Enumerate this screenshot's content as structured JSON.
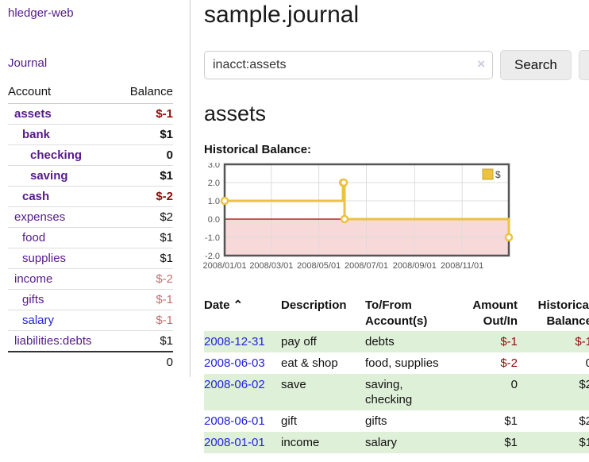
{
  "app": {
    "title": "hledger-web"
  },
  "sidebar": {
    "journal_label": "Journal",
    "accounts": {
      "account_header": "Account",
      "balance_header": "Balance",
      "rows": [
        {
          "account": "assets",
          "balance": "$-1",
          "level": 1,
          "in_view": true,
          "neg": "strong",
          "unvisited": false
        },
        {
          "account": "bank",
          "balance": "$1",
          "level": 2,
          "in_view": true,
          "neg": "none",
          "unvisited": false
        },
        {
          "account": "checking",
          "balance": "0",
          "level": 3,
          "in_view": true,
          "neg": "none",
          "unvisited": false
        },
        {
          "account": "saving",
          "balance": "$1",
          "level": 3,
          "in_view": true,
          "neg": "none",
          "unvisited": false
        },
        {
          "account": "cash",
          "balance": "$-2",
          "level": 2,
          "in_view": true,
          "neg": "strong",
          "unvisited": false
        },
        {
          "account": "expenses",
          "balance": "$2",
          "level": 1,
          "in_view": false,
          "neg": "none",
          "unvisited": false
        },
        {
          "account": "food",
          "balance": "$1",
          "level": 2,
          "in_view": false,
          "neg": "none",
          "unvisited": false
        },
        {
          "account": "supplies",
          "balance": "$1",
          "level": 2,
          "in_view": false,
          "neg": "none",
          "unvisited": false
        },
        {
          "account": "income",
          "balance": "$-2",
          "level": 1,
          "in_view": false,
          "neg": "muted",
          "unvisited": false
        },
        {
          "account": "gifts",
          "balance": "$-1",
          "level": 2,
          "in_view": false,
          "neg": "muted",
          "unvisited": false
        },
        {
          "account": "salary",
          "balance": "$-1",
          "level": 2,
          "in_view": false,
          "neg": "muted",
          "unvisited": true
        },
        {
          "account": "liabilities:debts",
          "balance": "$1",
          "level": 1,
          "in_view": false,
          "neg": "none",
          "unvisited": false
        }
      ],
      "total": "0"
    }
  },
  "main": {
    "title": "sample.journal",
    "search": {
      "value": "inacct:assets",
      "clear_glyph": "×",
      "button_label": "Search",
      "help_label": "?"
    },
    "account_heading": "assets",
    "chart_label": "Historical Balance:"
  },
  "chart_data": {
    "type": "line",
    "title": "Historical Balance",
    "step": true,
    "markers": "open-circle",
    "series": [
      {
        "name": "$",
        "color": "#EDC240",
        "points": [
          {
            "date": "2008/01/01",
            "day": 0,
            "value": 1
          },
          {
            "date": "2008/06/01",
            "day": 152,
            "value": 2
          },
          {
            "date": "2008/06/02",
            "day": 153,
            "value": 2
          },
          {
            "date": "2008/06/03",
            "day": 154,
            "value": 0
          },
          {
            "date": "2008/12/31",
            "day": 365,
            "value": -1
          }
        ]
      }
    ],
    "x_range_days": [
      0,
      365
    ],
    "x_ticks": [
      {
        "day": 0,
        "label": "2008/01/01"
      },
      {
        "day": 60,
        "label": "2008/03/01"
      },
      {
        "day": 121,
        "label": "2008/05/01"
      },
      {
        "day": 182,
        "label": "2008/07/01"
      },
      {
        "day": 244,
        "label": "2008/09/01"
      },
      {
        "day": 305,
        "label": "2008/11/01"
      }
    ],
    "ylim": [
      -2,
      3
    ],
    "y_ticks": [
      3.0,
      2.0,
      1.0,
      0.0,
      -1.0,
      -2.0
    ],
    "grid": true,
    "legend": {
      "position": "top-right",
      "label": "$"
    },
    "negative_region_color": "#f8d9d9",
    "zero_line_color": "#a40000"
  },
  "register": {
    "sort_glyph": "⌃",
    "headers": [
      {
        "id": "date",
        "lines": [
          "Date"
        ],
        "align": "left",
        "icon": "caret-up-icon"
      },
      {
        "id": "description",
        "lines": [
          "Description"
        ],
        "align": "left"
      },
      {
        "id": "accounts",
        "lines": [
          "To/From",
          "Account(s)"
        ],
        "align": "left"
      },
      {
        "id": "amount",
        "lines": [
          "Amount",
          "Out/In"
        ],
        "align": "right"
      },
      {
        "id": "balance",
        "lines": [
          "Historical",
          "Balance"
        ],
        "align": "right"
      }
    ],
    "rows": [
      {
        "date": "2008-12-31",
        "description": "pay off",
        "accounts": "debts",
        "amount": "$-1",
        "amount_neg": true,
        "balance": "$-1",
        "balance_neg": true
      },
      {
        "date": "2008-06-03",
        "description": "eat & shop",
        "accounts": "food, supplies",
        "amount": "$-2",
        "amount_neg": true,
        "balance": "0",
        "balance_neg": false
      },
      {
        "date": "2008-06-02",
        "description": "save",
        "accounts": "saving, checking",
        "amount": "0",
        "amount_neg": false,
        "balance": "$2",
        "balance_neg": false
      },
      {
        "date": "2008-06-01",
        "description": "gift",
        "accounts": "gifts",
        "amount": "$1",
        "amount_neg": false,
        "balance": "$2",
        "balance_neg": false
      },
      {
        "date": "2008-01-01",
        "description": "income",
        "accounts": "salary",
        "amount": "$1",
        "amount_neg": false,
        "balance": "$1",
        "balance_neg": false
      }
    ]
  },
  "colors": {
    "link_visited_purple": "#551A8B",
    "link_blue": "#2222dd",
    "negative_strong": "#8e0b0b",
    "negative_muted": "#c46e6e",
    "row_stripe_green": "#dff0d8",
    "series_gold": "#EDC240",
    "chart_border": "#545454"
  }
}
